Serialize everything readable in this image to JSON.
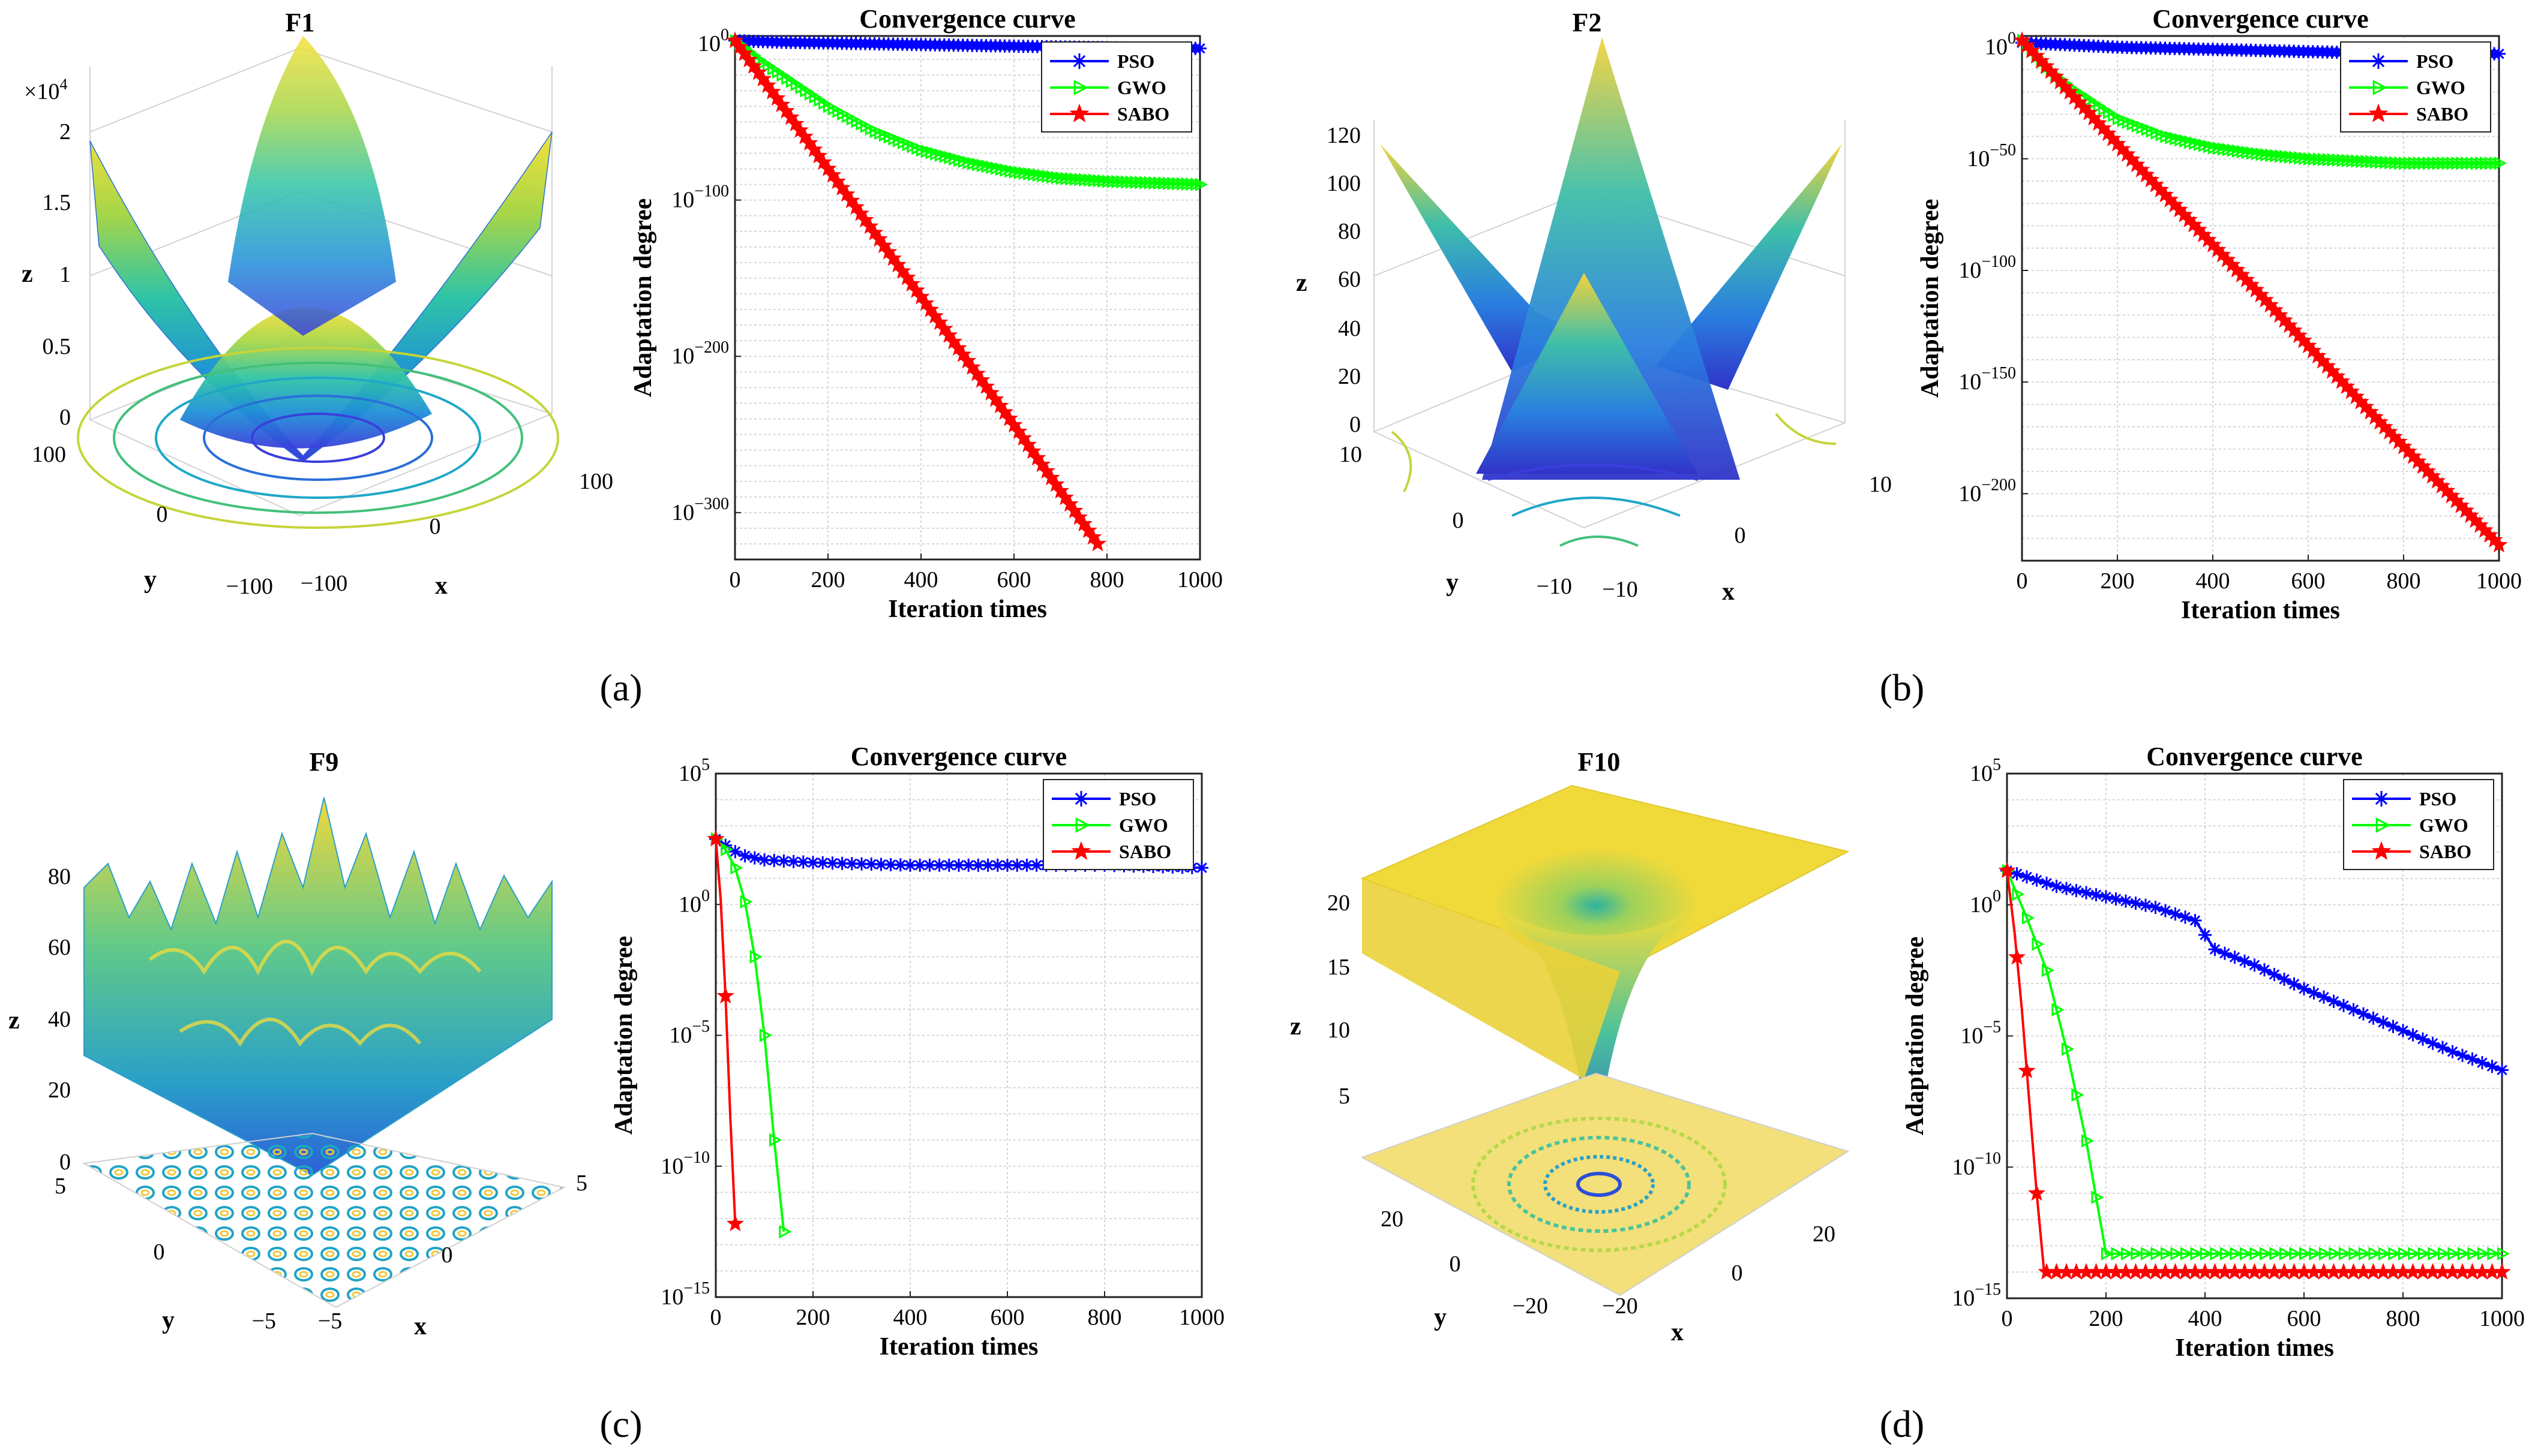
{
  "figure": {
    "panel_labels": [
      "(a)",
      "(b)",
      "(c)",
      "(d)"
    ],
    "surface_titles": [
      "F1",
      "F2",
      "F9",
      "F10"
    ],
    "axis_letters": {
      "x": "x",
      "y": "y",
      "z": "z"
    }
  },
  "surfaces": [
    {
      "title": "F1",
      "z_multiplier": "×10",
      "z_multiplier_exp": "4",
      "z_ticks": [
        "0",
        "0.5",
        "1",
        "1.5",
        "2"
      ],
      "y_ticks": [
        "100",
        "0",
        "−100"
      ],
      "x_ticks": [
        "−100",
        "0",
        "100"
      ]
    },
    {
      "title": "F2",
      "z_ticks": [
        "0",
        "20",
        "40",
        "60",
        "80",
        "100",
        "120"
      ],
      "y_ticks": [
        "10",
        "0",
        "−10"
      ],
      "x_ticks": [
        "−10",
        "0",
        "10"
      ]
    },
    {
      "title": "F9",
      "z_ticks": [
        "0",
        "20",
        "40",
        "60",
        "80"
      ],
      "y_ticks": [
        "5",
        "0",
        "−5"
      ],
      "x_ticks": [
        "−5",
        "0",
        "5"
      ]
    },
    {
      "title": "F10",
      "z_ticks": [
        "5",
        "10",
        "15",
        "20"
      ],
      "y_ticks": [
        "20",
        "0",
        "−20"
      ],
      "x_ticks": [
        "−20",
        "0",
        "20"
      ]
    }
  ],
  "chart_data": [
    {
      "type": "line",
      "panel": "(a)",
      "title": "Convergence curve",
      "xlabel": "Iteration times",
      "ylabel": "Adaptation degree",
      "xlim": [
        0,
        1000
      ],
      "yscale": "log",
      "ylim_exp": [
        -330,
        5
      ],
      "x_ticks": [
        "0",
        "200",
        "400",
        "600",
        "800",
        "1000"
      ],
      "y_ticks": [
        {
          "base": "10",
          "exp": "0",
          "value": 0
        },
        {
          "base": "10",
          "exp": "−100",
          "value": -100
        },
        {
          "base": "10",
          "exp": "−200",
          "value": -200
        },
        {
          "base": "10",
          "exp": "−300",
          "value": -300
        }
      ],
      "series": [
        {
          "name": "PSO",
          "color": "#0000ff",
          "marker": "asterisk",
          "log10_values": [
            [
              0,
              2
            ],
            [
              100,
              1
            ],
            [
              300,
              0
            ],
            [
              500,
              -1
            ],
            [
              700,
              -2
            ],
            [
              900,
              -3
            ],
            [
              1000,
              -3
            ]
          ]
        },
        {
          "name": "GWO",
          "color": "#00ff00",
          "marker": "triangle-right",
          "log10_values": [
            [
              0,
              2
            ],
            [
              50,
              -10
            ],
            [
              100,
              -20
            ],
            [
              200,
              -40
            ],
            [
              300,
              -56
            ],
            [
              400,
              -68
            ],
            [
              500,
              -76
            ],
            [
              600,
              -82
            ],
            [
              700,
              -86
            ],
            [
              800,
              -88
            ],
            [
              900,
              -89
            ],
            [
              1000,
              -90
            ]
          ]
        },
        {
          "name": "SABO",
          "color": "#ff0000",
          "marker": "star",
          "log10_values": [
            [
              0,
              2
            ],
            [
              200,
              -80
            ],
            [
              400,
              -162
            ],
            [
              600,
              -244
            ],
            [
              780,
              -320
            ]
          ]
        }
      ]
    },
    {
      "type": "line",
      "panel": "(b)",
      "title": "Convergence curve",
      "xlabel": "Iteration times",
      "ylabel": "Adaptation degree",
      "xlim": [
        0,
        1000
      ],
      "yscale": "log",
      "ylim_exp": [
        -230,
        5
      ],
      "x_ticks": [
        "0",
        "200",
        "400",
        "600",
        "800",
        "1000"
      ],
      "y_ticks": [
        {
          "base": "10",
          "exp": "0",
          "value": 0
        },
        {
          "base": "10",
          "exp": "−50",
          "value": -50
        },
        {
          "base": "10",
          "exp": "−100",
          "value": -100
        },
        {
          "base": "10",
          "exp": "−150",
          "value": -150
        },
        {
          "base": "10",
          "exp": "−200",
          "value": -200
        }
      ],
      "series": [
        {
          "name": "PSO",
          "color": "#0000ff",
          "marker": "asterisk",
          "log10_values": [
            [
              0,
              2
            ],
            [
              200,
              0
            ],
            [
              400,
              -1
            ],
            [
              600,
              -2
            ],
            [
              800,
              -3
            ],
            [
              1000,
              -3
            ]
          ]
        },
        {
          "name": "GWO",
          "color": "#00ff00",
          "marker": "triangle-right",
          "log10_values": [
            [
              0,
              3
            ],
            [
              50,
              -9
            ],
            [
              100,
              -18
            ],
            [
              200,
              -32
            ],
            [
              300,
              -40
            ],
            [
              400,
              -45
            ],
            [
              500,
              -48
            ],
            [
              600,
              -50
            ],
            [
              800,
              -52
            ],
            [
              1000,
              -52
            ]
          ]
        },
        {
          "name": "SABO",
          "color": "#ff0000",
          "marker": "star",
          "log10_values": [
            [
              0,
              3
            ],
            [
              250,
              -55
            ],
            [
              500,
              -111
            ],
            [
              750,
              -168
            ],
            [
              1000,
              -223
            ]
          ]
        }
      ]
    },
    {
      "type": "line",
      "panel": "(c)",
      "title": "Convergence curve",
      "xlabel": "Iteration times",
      "ylabel": "Adaptation degree",
      "xlim": [
        0,
        1000
      ],
      "yscale": "log",
      "ylim_exp": [
        -15,
        5
      ],
      "x_ticks": [
        "0",
        "200",
        "400",
        "600",
        "800",
        "1000"
      ],
      "y_ticks": [
        {
          "base": "10",
          "exp": "5",
          "value": 5
        },
        {
          "base": "10",
          "exp": "0",
          "value": 0
        },
        {
          "base": "10",
          "exp": "−5",
          "value": -5
        },
        {
          "base": "10",
          "exp": "−10",
          "value": -10
        },
        {
          "base": "10",
          "exp": "−15",
          "value": -15
        }
      ],
      "series": [
        {
          "name": "PSO",
          "color": "#0000ff",
          "marker": "asterisk",
          "log10_values": [
            [
              0,
              2.5
            ],
            [
              50,
              1.9
            ],
            [
              100,
              1.7
            ],
            [
              200,
              1.6
            ],
            [
              400,
              1.5
            ],
            [
              600,
              1.5
            ],
            [
              800,
              1.5
            ],
            [
              1000,
              1.4
            ]
          ]
        },
        {
          "name": "GWO",
          "color": "#00ff00",
          "marker": "triangle-right",
          "log10_values": [
            [
              0,
              2.5
            ],
            [
              20,
              2.1
            ],
            [
              40,
              1.4
            ],
            [
              60,
              0.1
            ],
            [
              80,
              -2
            ],
            [
              100,
              -5
            ],
            [
              120,
              -9
            ],
            [
              140,
              -12.5
            ]
          ]
        },
        {
          "name": "SABO",
          "color": "#ff0000",
          "marker": "star",
          "log10_values": [
            [
              0,
              2.5
            ],
            [
              10,
              0.2
            ],
            [
              20,
              -3.5
            ],
            [
              30,
              -8.2
            ],
            [
              40,
              -12.2
            ]
          ]
        }
      ]
    },
    {
      "type": "line",
      "panel": "(d)",
      "title": "Convergence curve",
      "xlabel": "Iteration times",
      "ylabel": "Adaptation degree",
      "xlim": [
        0,
        1000
      ],
      "yscale": "log",
      "ylim_exp": [
        -15,
        5
      ],
      "x_ticks": [
        "0",
        "200",
        "400",
        "600",
        "800",
        "1000"
      ],
      "y_ticks": [
        {
          "base": "10",
          "exp": "5",
          "value": 5
        },
        {
          "base": "10",
          "exp": "0",
          "value": 0
        },
        {
          "base": "10",
          "exp": "−5",
          "value": -5
        },
        {
          "base": "10",
          "exp": "−10",
          "value": -10
        },
        {
          "base": "10",
          "exp": "−15",
          "value": -15
        }
      ],
      "series": [
        {
          "name": "PSO",
          "color": "#0000ff",
          "marker": "asterisk",
          "log10_values": [
            [
              0,
              1.3
            ],
            [
              100,
              0.7
            ],
            [
              200,
              0.3
            ],
            [
              300,
              -0.1
            ],
            [
              380,
              -0.6
            ],
            [
              420,
              -1.7
            ],
            [
              500,
              -2.3
            ],
            [
              600,
              -3.2
            ],
            [
              700,
              -4.0
            ],
            [
              800,
              -4.8
            ],
            [
              900,
              -5.6
            ],
            [
              1000,
              -6.3
            ]
          ]
        },
        {
          "name": "GWO",
          "color": "#00ff00",
          "marker": "triangle-right",
          "log10_values": [
            [
              0,
              1.3
            ],
            [
              40,
              -0.5
            ],
            [
              80,
              -2.5
            ],
            [
              120,
              -5.5
            ],
            [
              160,
              -9
            ],
            [
              200,
              -13.3
            ],
            [
              300,
              -13.3
            ],
            [
              500,
              -13.3
            ],
            [
              700,
              -13.3
            ],
            [
              1000,
              -13.3
            ]
          ]
        },
        {
          "name": "SABO",
          "color": "#ff0000",
          "marker": "star",
          "log10_values": [
            [
              0,
              1.3
            ],
            [
              15,
              -1
            ],
            [
              30,
              -4
            ],
            [
              45,
              -7.5
            ],
            [
              60,
              -11
            ],
            [
              75,
              -14
            ],
            [
              100,
              -14
            ],
            [
              300,
              -14
            ],
            [
              600,
              -14
            ],
            [
              1000,
              -14
            ]
          ]
        }
      ]
    }
  ]
}
